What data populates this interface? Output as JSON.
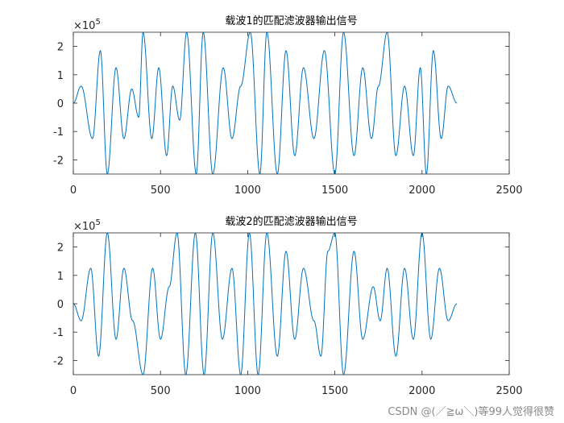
{
  "watermark": "CSDN @(／≧ω＼)等99人觉得很赞",
  "colors": {
    "line": "#0072BD",
    "axes": "#262626",
    "background": "#ffffff"
  },
  "chart_data": [
    {
      "type": "line",
      "title": "载波1的匹配滤波器输出信号",
      "exponent_label": "×10",
      "exponent_power": "5",
      "xlim": [
        0,
        2500
      ],
      "ylim": [
        -2.5,
        2.5
      ],
      "y_scale": 100000,
      "x_ticks": [
        "0",
        "500",
        "1000",
        "1500",
        "2000",
        "2500"
      ],
      "y_ticks": [
        "-2",
        "-1",
        "0",
        "1",
        "2"
      ],
      "grid": false,
      "series": [
        {
          "peaks_x": [
            0,
            45,
            110,
            155,
            195,
            245,
            290,
            335,
            375,
            400,
            450,
            490,
            535,
            570,
            610,
            650,
            705,
            745,
            800,
            860,
            910,
            960,
            1015,
            1070,
            1110,
            1170,
            1220,
            1270,
            1320,
            1380,
            1440,
            1500,
            1550,
            1610,
            1660,
            1710,
            1750,
            1800,
            1850,
            1900,
            1950,
            1990,
            2025,
            2065,
            2110,
            2150,
            2200
          ],
          "peaks_y": [
            0,
            0.6,
            -1.25,
            1.85,
            -2.5,
            1.25,
            -1.25,
            0.5,
            -0.5,
            2.5,
            -1.25,
            1.25,
            -1.85,
            0.6,
            -0.6,
            2.5,
            -2.5,
            2.5,
            -2.5,
            1.25,
            -1.25,
            0.6,
            2.5,
            -2.5,
            2.5,
            -2.5,
            1.85,
            -1.85,
            1.25,
            -1.25,
            1.85,
            -2.5,
            2.5,
            -1.85,
            1.25,
            -1.25,
            0.6,
            2.5,
            -1.85,
            0.6,
            -1.85,
            1.25,
            -2.5,
            1.85,
            -1.25,
            0.6,
            0
          ]
        }
      ]
    },
    {
      "type": "line",
      "title": "载波2的匹配滤波器输出信号",
      "exponent_label": "×10",
      "exponent_power": "5",
      "xlim": [
        0,
        2500
      ],
      "ylim": [
        -2.5,
        2.5
      ],
      "y_scale": 100000,
      "x_ticks": [
        "0",
        "500",
        "1000",
        "1500",
        "2000",
        "2500"
      ],
      "y_ticks": [
        "-2",
        "-1",
        "0",
        "1",
        "2"
      ],
      "grid": false,
      "series": [
        {
          "peaks_x": [
            0,
            45,
            100,
            145,
            195,
            245,
            290,
            340,
            400,
            455,
            500,
            550,
            595,
            645,
            700,
            750,
            800,
            855,
            910,
            960,
            1010,
            1060,
            1110,
            1170,
            1220,
            1270,
            1320,
            1380,
            1420,
            1460,
            1500,
            1550,
            1610,
            1660,
            1720,
            1760,
            1800,
            1850,
            1900,
            1950,
            2000,
            2050,
            2100,
            2150,
            2200
          ],
          "peaks_y": [
            0,
            -0.6,
            1.25,
            -1.85,
            2.5,
            -1.25,
            1.25,
            -0.6,
            -2.5,
            1.25,
            -1.25,
            0.6,
            2.5,
            -2.5,
            2.5,
            -2.5,
            2.5,
            -1.25,
            1.25,
            -2.5,
            2.5,
            -2.5,
            2.5,
            -1.85,
            1.85,
            -1.25,
            1.25,
            -0.6,
            -1.85,
            1.85,
            2.5,
            -2.5,
            1.85,
            -1.25,
            0.6,
            -0.6,
            1.25,
            -1.85,
            1.25,
            -1.25,
            2.5,
            -1.25,
            1.25,
            -0.6,
            0
          ]
        }
      ]
    }
  ]
}
